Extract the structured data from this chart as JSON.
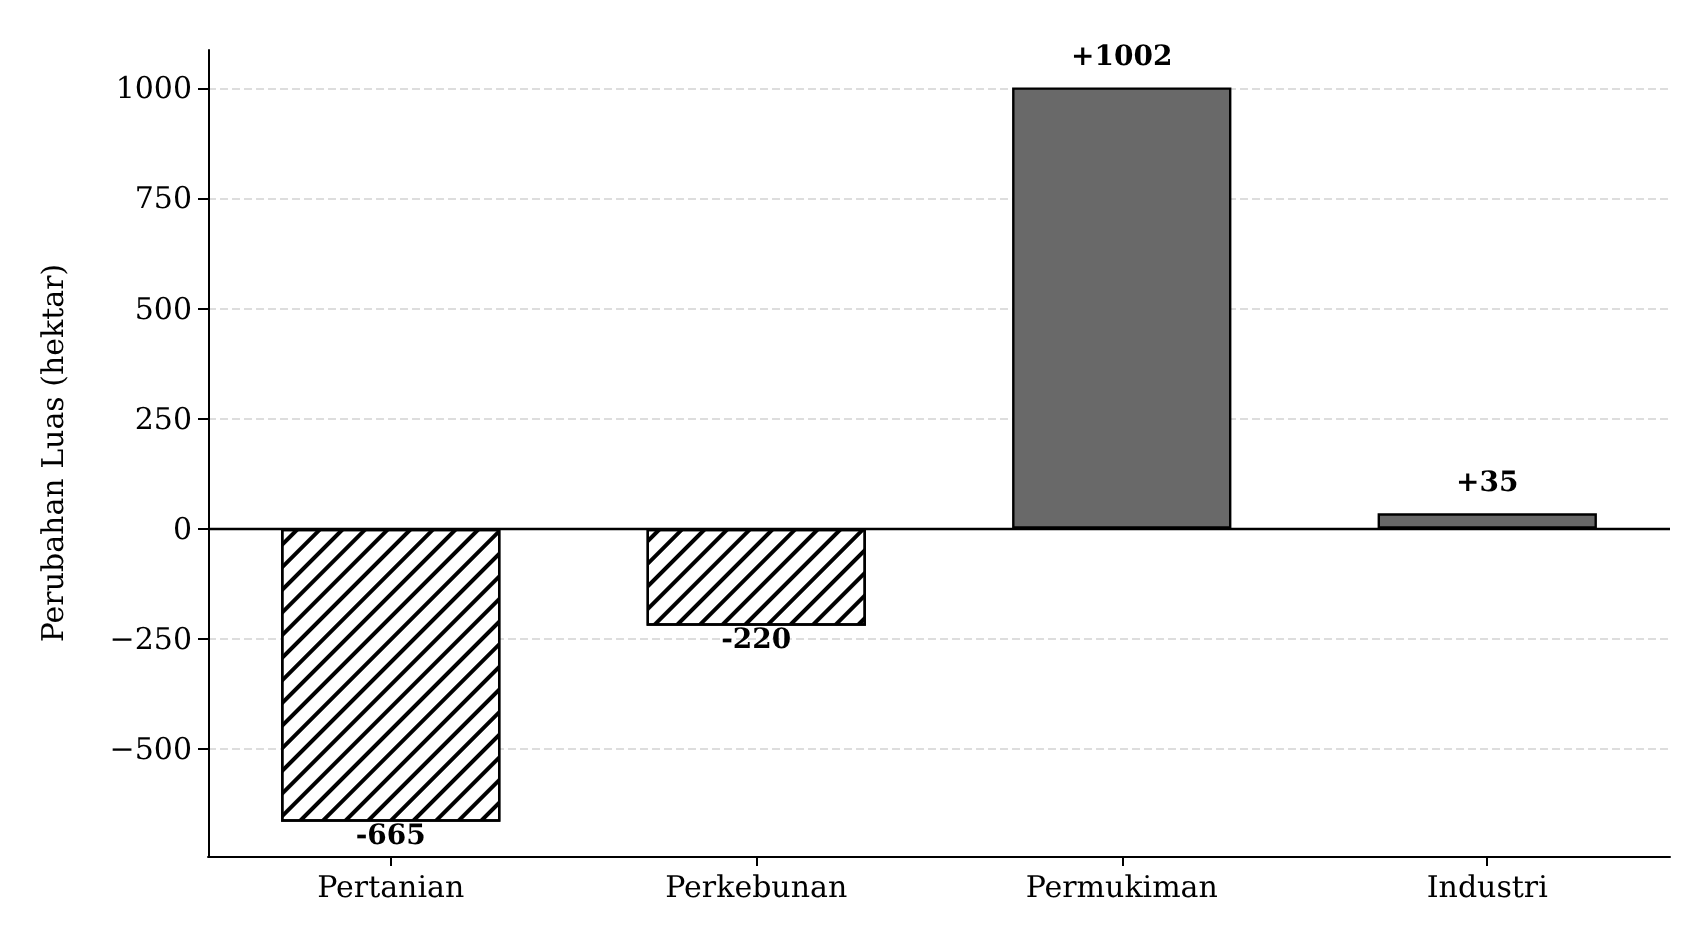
{
  "chart_data": {
    "type": "bar",
    "ylabel": "Perubahan Luas (hektar)",
    "categories": [
      "Pertanian",
      "Perkebunan",
      "Permukiman",
      "Industri"
    ],
    "values": [
      -665,
      -220,
      1002,
      35
    ],
    "colors": [
      "#ffffff",
      "#ffffff",
      "#696969",
      "#696969"
    ],
    "value_labels": [
      "-665",
      "-220",
      "+1002",
      "+35"
    ],
    "ylim": [
      -743,
      1087
    ],
    "yticks": [
      {
        "value": -500,
        "label": "−500"
      },
      {
        "value": -250,
        "label": "−250"
      },
      0,
      250,
      500,
      750,
      1000
    ],
    "ref_lines": [
      {
        "axis": "y",
        "value": 0,
        "color": "#000000"
      }
    ],
    "grid": "y"
  }
}
